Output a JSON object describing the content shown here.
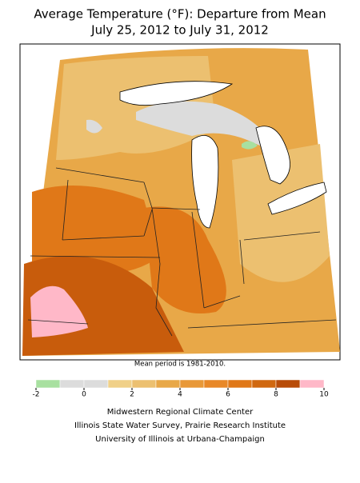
{
  "title": [
    "Average Temperature (°F): Departure from Mean",
    "July 25, 2012 to July 31, 2012"
  ],
  "note": "Mean period is 1981-2010.",
  "colorbar": {
    "bins": [
      -2,
      -1,
      0,
      1,
      2,
      3,
      4,
      5,
      6,
      7,
      8,
      9,
      10
    ],
    "colors": [
      "#a8e0a0",
      "#dcdcdc",
      "#dcdcdc",
      "#f0d088",
      "#ecc070",
      "#e8a848",
      "#e89838",
      "#e88828",
      "#e07818",
      "#d06810",
      "#b84c08",
      "#ffb8c8"
    ],
    "ticks": [
      -2,
      0,
      2,
      4,
      6,
      8,
      10
    ]
  },
  "footer": [
    "Midwestern Regional Climate Center",
    "Illinois State Water Survey, Prairie Research Institute",
    "University of Illinois at Urbana-Champaign"
  ]
}
